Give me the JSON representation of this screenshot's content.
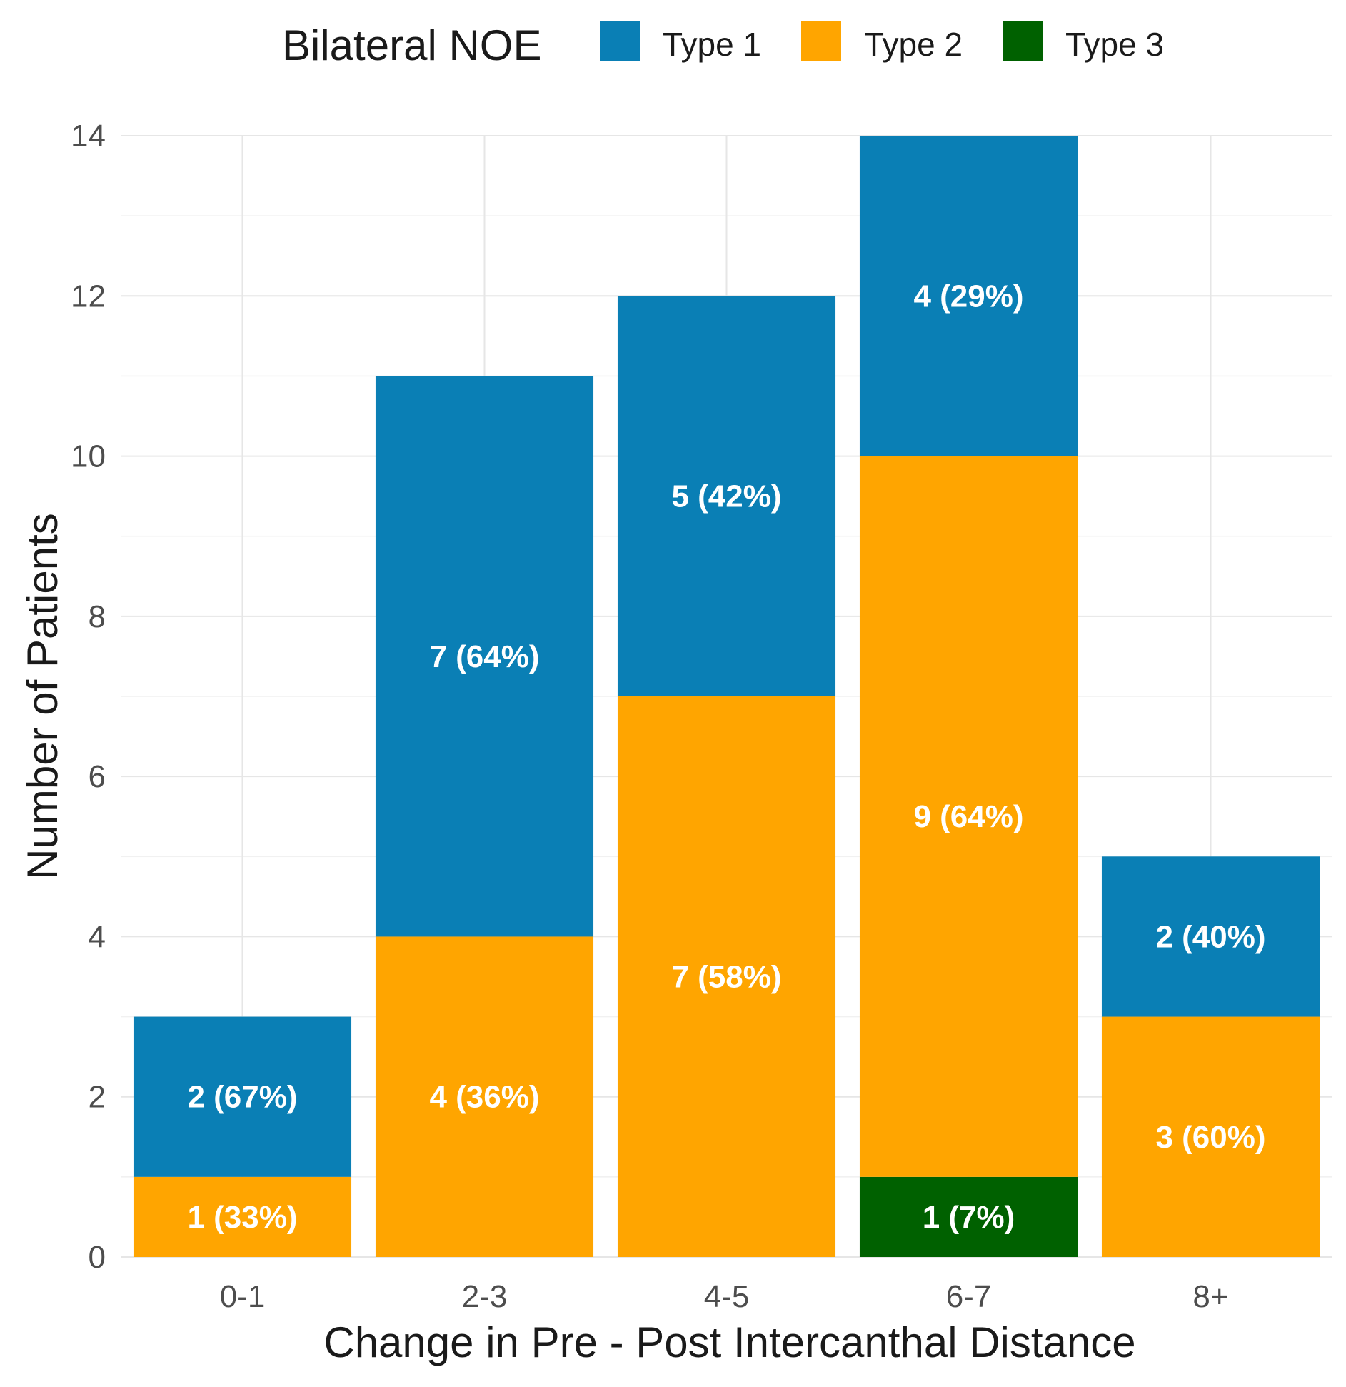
{
  "chart_data": {
    "type": "bar",
    "stacked": true,
    "title": "",
    "xlabel": "Change in Pre - Post Intercanthal Distance",
    "ylabel": "Number of Patients",
    "ylim": [
      0,
      14
    ],
    "yticks": [
      0,
      2,
      4,
      6,
      8,
      10,
      12,
      14
    ],
    "grid": true,
    "legend": {
      "title": "Bilateral NOE",
      "position": "top"
    },
    "categories": [
      "0-1",
      "2-3",
      "4-5",
      "6-7",
      "8+"
    ],
    "series": [
      {
        "name": "Type 1",
        "color": "#0a7fb5",
        "values": [
          2,
          7,
          5,
          4,
          2
        ],
        "labels": [
          "2 (67%)",
          "7 (64%)",
          "5 (42%)",
          "4 (29%)",
          "2 (40%)"
        ]
      },
      {
        "name": "Type 2",
        "color": "#ffa500",
        "values": [
          1,
          4,
          7,
          9,
          3
        ],
        "labels": [
          "1 (33%)",
          "4 (36%)",
          "7 (58%)",
          "9 (64%)",
          "3 (60%)"
        ]
      },
      {
        "name": "Type 3",
        "color": "#006100",
        "values": [
          0,
          0,
          0,
          1,
          0
        ],
        "labels": [
          "",
          "",
          "",
          "1 (7%)",
          ""
        ]
      }
    ],
    "stack_order_bottom_to_top": [
      "Type 3",
      "Type 2",
      "Type 1"
    ]
  }
}
